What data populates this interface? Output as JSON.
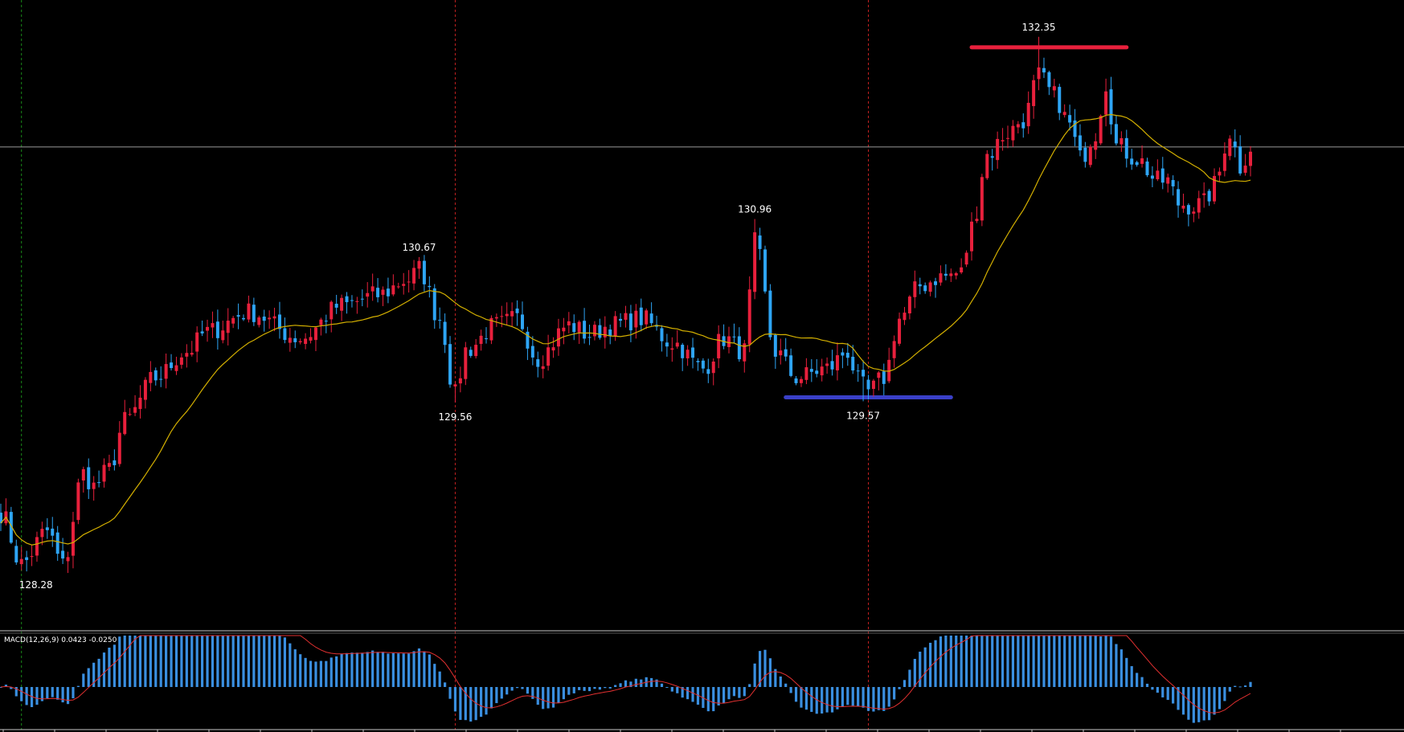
{
  "colors": {
    "background": "#000000",
    "bull": "#e8203c",
    "bear": "#2ea5f5",
    "moving_average": "#d4b000",
    "macd_histogram": "#3a8fe0",
    "macd_signal": "#e23030",
    "resistance_line": "#e8203c",
    "support_line": "#3a40c8",
    "current_price_line": "#9a9a9a",
    "separator": "#c8c8c8",
    "vertical_marker_red": "#c02020",
    "vertical_marker_green": "#1a8a1a"
  },
  "chart_data": [
    {
      "type": "candlestick",
      "price_range": [
        127.85,
        132.6
      ],
      "annotations": [
        {
          "text": "132.35",
          "kind": "high",
          "price": 132.35,
          "bar": 201
        },
        {
          "text": "130.96",
          "kind": "high",
          "price": 130.96,
          "bar": 146
        },
        {
          "text": "130.67",
          "kind": "high",
          "price": 130.67,
          "bar": 81
        },
        {
          "text": "129.56",
          "kind": "low",
          "price": 129.56,
          "bar": 88
        },
        {
          "text": "129.57",
          "kind": "low",
          "price": 129.57,
          "bar": 167
        },
        {
          "text": "128.28",
          "kind": "low",
          "price": 128.28,
          "bar": 4
        }
      ],
      "resistance": {
        "price": 132.27,
        "from_bar": 188,
        "to_bar": 218
      },
      "support": {
        "price": 129.6,
        "from_bar": 152,
        "to_bar": 184
      },
      "current_price": 131.51,
      "vertical_markers": [
        {
          "bar": 4,
          "color": "green"
        },
        {
          "bar": 88,
          "color": "red"
        },
        {
          "bar": 168,
          "color": "red"
        }
      ],
      "moving_average": "20-period simple moving average of close",
      "bars": 243
    },
    {
      "type": "macd",
      "label": "MACD(12,26,9) 0.0423 -0.0250",
      "params": "12,26,9",
      "macd_value": 0.0423,
      "signal_value": -0.025,
      "series": [
        "MACD histogram",
        "Signal line"
      ]
    }
  ]
}
